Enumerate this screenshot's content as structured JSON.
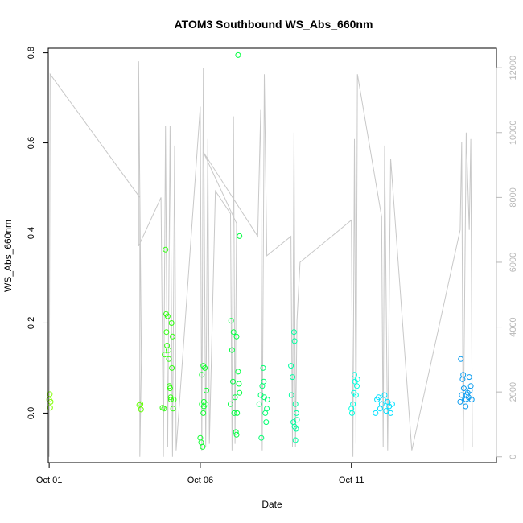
{
  "chart_data": {
    "type": "scatter",
    "title": "ATOM3 Southbound WS_Abs_660nm",
    "xlabel": "Date",
    "ylabel": "WS_Abs_660nm",
    "x_ticks": [
      {
        "day": 1,
        "label": "Oct 01"
      },
      {
        "day": 6,
        "label": "Oct 06"
      },
      {
        "day": 11,
        "label": "Oct 11"
      }
    ],
    "xlim": [
      0.97,
      15.8
    ],
    "ylim": [
      -0.11,
      0.81
    ],
    "y_ticks": [
      0.0,
      0.2,
      0.4,
      0.6,
      0.8
    ],
    "y_tick_labels": [
      "0.0",
      "0.2",
      "0.4",
      "0.6",
      "0.8"
    ],
    "right_axis": {
      "ylim": [
        -180,
        12600
      ],
      "ticks": [
        0,
        2000,
        4000,
        6000,
        8000,
        10000,
        12000
      ],
      "tick_labels": [
        "0",
        "2000",
        "4000",
        "6000",
        "8000",
        "10000",
        "12000"
      ],
      "color": "#b8b8b8"
    },
    "altitude_line_color": "#c8c8c8",
    "altitude_trace": [
      [
        1.0,
        0
      ],
      [
        1.03,
        11800
      ],
      [
        4.0,
        8000
      ],
      [
        4.0,
        0
      ],
      [
        4.05,
        3000
      ],
      [
        3.96,
        12200
      ],
      [
        3.96,
        6500
      ],
      [
        4.7,
        8000
      ],
      [
        4.78,
        0
      ],
      [
        4.85,
        10200
      ],
      [
        4.92,
        300
      ],
      [
        5.0,
        10200
      ],
      [
        5.08,
        0
      ],
      [
        5.15,
        9600
      ],
      [
        5.2,
        200
      ],
      [
        6.0,
        10800
      ],
      [
        6.05,
        200
      ],
      [
        6.1,
        12000
      ],
      [
        6.18,
        300
      ],
      [
        6.25,
        9800
      ],
      [
        6.3,
        400
      ],
      [
        6.5,
        8200
      ],
      [
        7.0,
        7500
      ],
      [
        7.05,
        200
      ],
      [
        7.1,
        10500
      ],
      [
        7.15,
        400
      ],
      [
        7.2,
        7200
      ],
      [
        6.1,
        9400
      ],
      [
        7.9,
        6800
      ],
      [
        8.0,
        10700
      ],
      [
        8.05,
        200
      ],
      [
        8.12,
        11800
      ],
      [
        8.2,
        6200
      ],
      [
        9.0,
        6800
      ],
      [
        9.05,
        300
      ],
      [
        9.1,
        10000
      ],
      [
        9.15,
        300
      ],
      [
        9.2,
        4200
      ],
      [
        9.3,
        6000
      ],
      [
        11.0,
        7300
      ],
      [
        11.05,
        0
      ],
      [
        11.1,
        9800
      ],
      [
        11.15,
        400
      ],
      [
        11.2,
        11800
      ],
      [
        12.0,
        7400
      ],
      [
        12.05,
        300
      ],
      [
        12.1,
        9600
      ],
      [
        12.2,
        200
      ],
      [
        12.3,
        9200
      ],
      [
        13.0,
        200
      ],
      [
        14.6,
        7000
      ],
      [
        14.65,
        9700
      ],
      [
        14.7,
        200
      ],
      [
        14.8,
        10000
      ],
      [
        14.9,
        7000
      ],
      [
        14.95,
        9800
      ],
      [
        15.0,
        300
      ]
    ],
    "flights": [
      {
        "color": "#80ff00",
        "points": [
          [
            1.0,
            0.03
          ],
          [
            1.02,
            0.042
          ],
          [
            1.03,
            0.012
          ],
          [
            1.05,
            0.025
          ]
        ]
      },
      {
        "color": "#60ff00",
        "points": [
          [
            3.98,
            0.018
          ],
          [
            4.02,
            0.02
          ],
          [
            4.04,
            0.008
          ]
        ]
      },
      {
        "color": "#30ff10",
        "points": [
          [
            4.75,
            0.012
          ],
          [
            4.8,
            0.01
          ],
          [
            4.82,
            0.13
          ],
          [
            4.85,
            0.363
          ],
          [
            4.87,
            0.22
          ],
          [
            4.88,
            0.18
          ],
          [
            4.9,
            0.15
          ],
          [
            4.92,
            0.215
          ],
          [
            4.95,
            0.14
          ],
          [
            4.96,
            0.12
          ],
          [
            4.98,
            0.06
          ],
          [
            5.0,
            0.055
          ],
          [
            5.02,
            0.035
          ],
          [
            5.03,
            0.03
          ],
          [
            5.05,
            0.2
          ],
          [
            5.06,
            0.1
          ],
          [
            5.08,
            0.17
          ],
          [
            5.1,
            0.01
          ],
          [
            5.12,
            0.03
          ]
        ]
      },
      {
        "color": "#10ff30",
        "points": [
          [
            6.0,
            -0.055
          ],
          [
            6.03,
            -0.065
          ],
          [
            6.05,
            0.085
          ],
          [
            6.08,
            -0.075
          ],
          [
            6.1,
            0.105
          ],
          [
            6.12,
            0.015
          ],
          [
            6.15,
            0.1
          ],
          [
            6.18,
            0.02
          ],
          [
            6.2,
            0.05
          ],
          [
            6.05,
            0.02
          ],
          [
            6.1,
            0.0
          ],
          [
            6.12,
            0.025
          ]
        ]
      },
      {
        "color": "#00ff40",
        "points": [
          [
            7.0,
            0.02
          ],
          [
            7.02,
            0.205
          ],
          [
            7.05,
            0.14
          ],
          [
            7.08,
            0.07
          ],
          [
            7.1,
            0.18
          ],
          [
            7.12,
            0.0
          ],
          [
            7.15,
            0.035
          ],
          [
            7.18,
            -0.042
          ],
          [
            7.2,
            -0.048
          ],
          [
            7.22,
            0.0
          ],
          [
            7.25,
            0.092
          ],
          [
            7.28,
            0.065
          ],
          [
            7.3,
            0.045
          ],
          [
            7.2,
            0.17
          ],
          [
            7.3,
            0.393
          ],
          [
            7.25,
            0.795
          ]
        ]
      },
      {
        "color": "#00ff70",
        "points": [
          [
            7.95,
            0.02
          ],
          [
            8.0,
            0.04
          ],
          [
            8.02,
            -0.055
          ],
          [
            8.05,
            0.06
          ],
          [
            8.08,
            0.1
          ],
          [
            8.1,
            0.07
          ],
          [
            8.12,
            0.035
          ],
          [
            8.15,
            0.0
          ],
          [
            8.18,
            -0.02
          ],
          [
            8.2,
            0.01
          ],
          [
            8.22,
            0.03
          ]
        ]
      },
      {
        "color": "#00ffa0",
        "points": [
          [
            9.0,
            0.105
          ],
          [
            9.02,
            0.04
          ],
          [
            9.05,
            0.08
          ],
          [
            9.08,
            -0.02
          ],
          [
            9.1,
            0.18
          ],
          [
            9.12,
            0.16
          ],
          [
            9.15,
            0.02
          ],
          [
            9.18,
            0.0
          ],
          [
            9.2,
            -0.015
          ],
          [
            9.12,
            -0.03
          ],
          [
            9.15,
            -0.06
          ],
          [
            9.17,
            -0.035
          ]
        ]
      },
      {
        "color": "#00ffe0",
        "points": [
          [
            11.0,
            0.01
          ],
          [
            11.02,
            0.0
          ],
          [
            11.05,
            0.02
          ],
          [
            11.08,
            0.045
          ],
          [
            11.1,
            0.085
          ],
          [
            11.12,
            0.07
          ],
          [
            11.15,
            0.04
          ],
          [
            11.18,
            0.06
          ],
          [
            11.2,
            0.075
          ]
        ]
      },
      {
        "color": "#00e0ff",
        "points": [
          [
            11.8,
            0.0
          ],
          [
            11.85,
            0.03
          ],
          [
            11.9,
            0.035
          ],
          [
            11.95,
            0.01
          ],
          [
            12.0,
            0.02
          ],
          [
            12.05,
            0.03
          ],
          [
            12.1,
            0.04
          ],
          [
            12.15,
            0.005
          ],
          [
            12.2,
            0.025
          ],
          [
            12.25,
            0.015
          ],
          [
            12.3,
            0.0
          ],
          [
            12.35,
            0.02
          ]
        ]
      },
      {
        "color": "#0a9cf0",
        "points": [
          [
            14.6,
            0.025
          ],
          [
            14.62,
            0.12
          ],
          [
            14.65,
            0.04
          ],
          [
            14.68,
            0.075
          ],
          [
            14.7,
            0.085
          ],
          [
            14.72,
            0.055
          ],
          [
            14.75,
            0.03
          ],
          [
            14.78,
            0.015
          ],
          [
            14.8,
            0.03
          ],
          [
            14.82,
            0.04
          ],
          [
            14.85,
            0.045
          ],
          [
            14.88,
            0.035
          ],
          [
            14.9,
            0.08
          ],
          [
            14.92,
            0.05
          ],
          [
            14.95,
            0.06
          ],
          [
            14.98,
            0.03
          ]
        ]
      }
    ]
  }
}
